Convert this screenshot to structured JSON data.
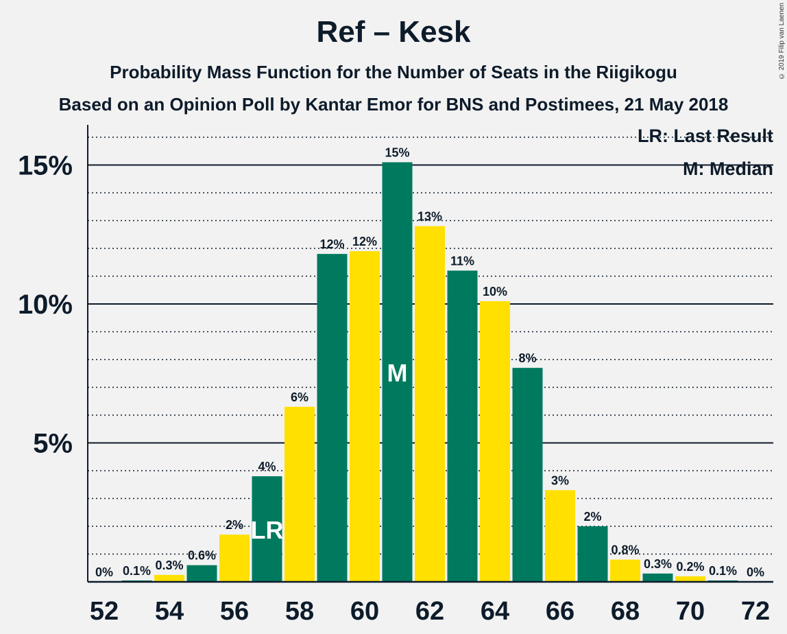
{
  "title": "Ref – Kesk",
  "subtitle": "Probability Mass Function for the Number of Seats in the Riigikogu",
  "subtitle2": "Based on an Opinion Poll by Kantar Emor for BNS and Postimees, 21 May 2018",
  "copyright": "© 2019 Filip van Laenen",
  "legend": {
    "lr": "LR: Last Result",
    "m": "M: Median"
  },
  "colors": {
    "green": "#007a5e",
    "yellow": "#ffe000",
    "background": "#f2f2f2",
    "text": "#0d1b2a"
  },
  "chart_data": {
    "type": "bar",
    "xlabel": "",
    "ylabel": "",
    "ylim": [
      0,
      16.5
    ],
    "yticks": [
      5,
      10,
      15
    ],
    "ytick_labels": [
      "5%",
      "10%",
      "15%"
    ],
    "x_tick_labels": [
      "52",
      "54",
      "56",
      "58",
      "60",
      "62",
      "64",
      "66",
      "68",
      "70",
      "72"
    ],
    "categories": [
      52,
      53,
      54,
      55,
      56,
      57,
      58,
      59,
      60,
      61,
      62,
      63,
      64,
      65,
      66,
      67,
      68,
      69,
      70,
      71,
      72
    ],
    "values": [
      0,
      0.05,
      0.25,
      0.6,
      1.7,
      3.8,
      6.3,
      11.8,
      11.9,
      15.1,
      12.8,
      11.2,
      10.1,
      7.7,
      3.3,
      2.0,
      0.8,
      0.3,
      0.2,
      0.05,
      0
    ],
    "labels": [
      "0%",
      "0.1%",
      "0.3%",
      "0.6%",
      "2%",
      "4%",
      "6%",
      "12%",
      "12%",
      "15%",
      "13%",
      "11%",
      "10%",
      "8%",
      "3%",
      "2%",
      "0.8%",
      "0.3%",
      "0.2%",
      "0.1%",
      "0%"
    ],
    "last_result": 57,
    "median": 61,
    "grid": true
  }
}
